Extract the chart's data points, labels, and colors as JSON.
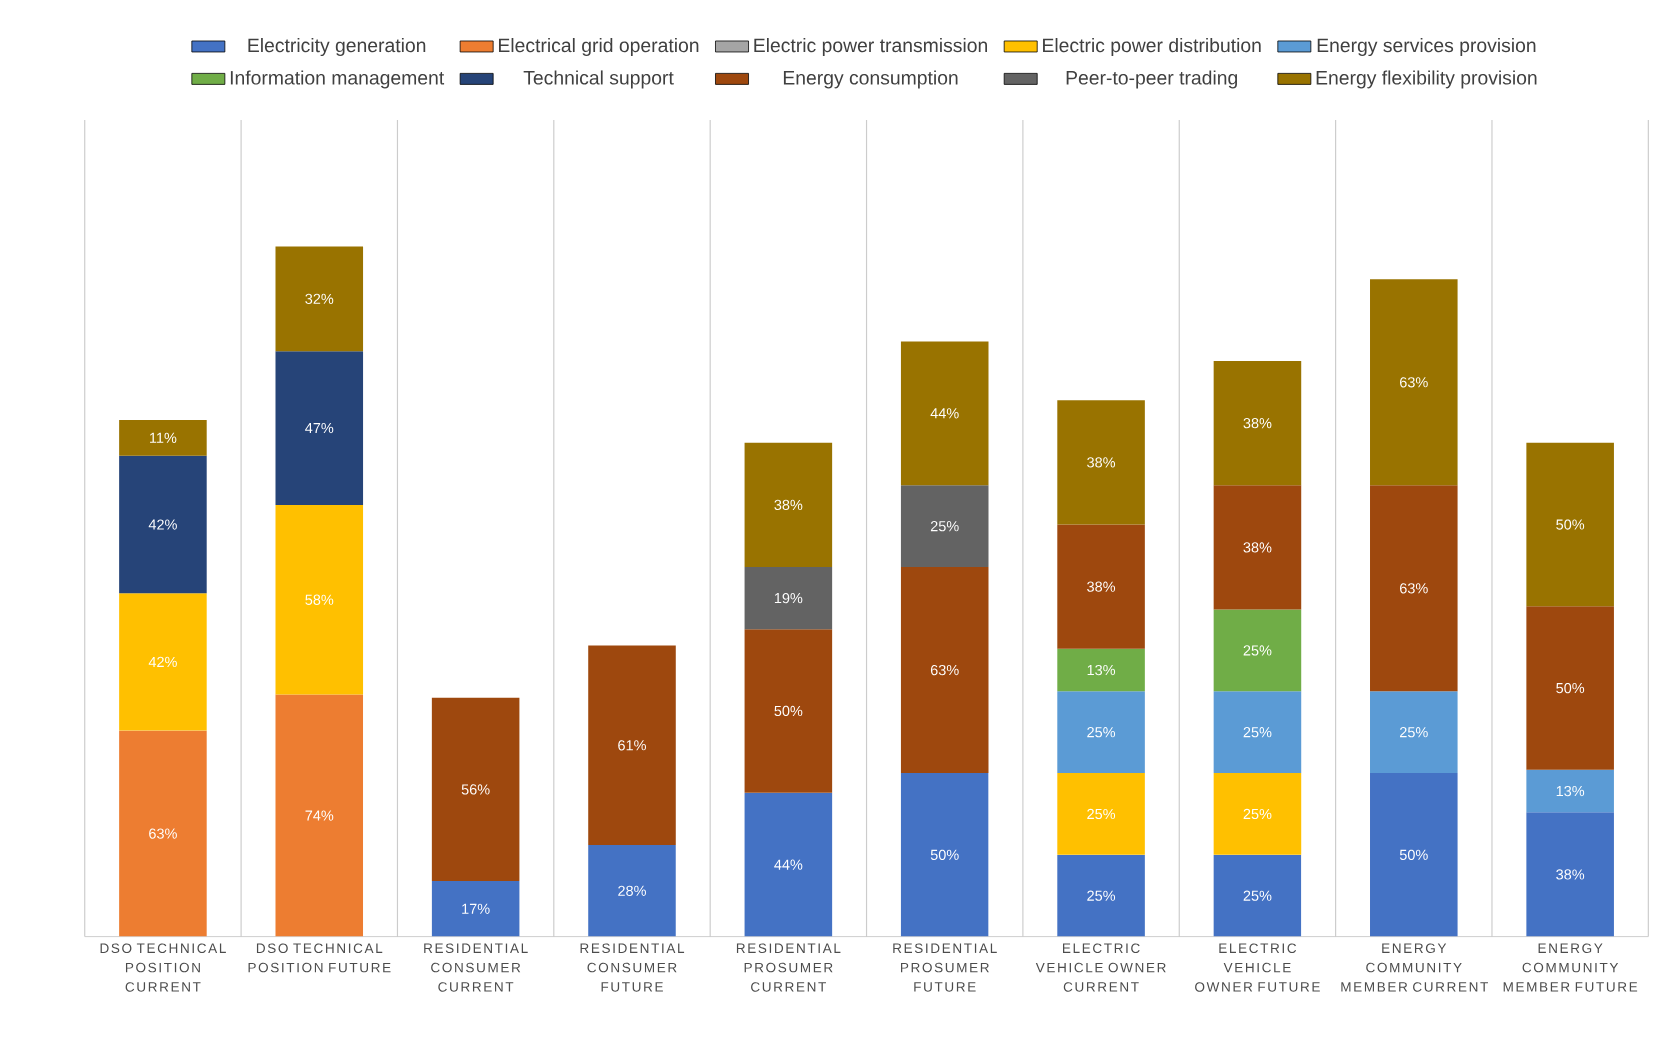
{
  "chart_data": {
    "type": "bar",
    "stacked": true,
    "legend": "top",
    "grid": "x",
    "categories": [
      "DSO TECHNICAL POSITION CURRENT",
      "DSO TECHNICAL POSITION FUTURE",
      "RESIDENTIAL CONSUMER CURRENT",
      "RESIDENTIAL CONSUMER FUTURE",
      "RESIDENTIAL PROSUMER CURRENT",
      "RESIDENTIAL PROSUMER FUTURE",
      "ELECTRIC VEHICLE OWNER CURRENT",
      "ELECTRIC VEHICLE OWNER FUTURE",
      "ENERGY COMMUNITY MEMBER CURRENT",
      "ENERGY COMMUNITY MEMBER FUTURE"
    ],
    "series": [
      {
        "name": "Electricity generation",
        "color": "#4472c4",
        "values": [
          null,
          null,
          17,
          28,
          44,
          50,
          25,
          25,
          50,
          38
        ],
        "value_labels": [
          null,
          null,
          "17%",
          "28%",
          "44%",
          "50%",
          "25%",
          "25%",
          "50%",
          "38%"
        ]
      },
      {
        "name": "Electrical grid operation",
        "color": "#ed7d31",
        "values": [
          63,
          74,
          null,
          null,
          null,
          null,
          null,
          null,
          null,
          null
        ],
        "value_labels": [
          "63%",
          "74%",
          null,
          null,
          null,
          null,
          null,
          null,
          null,
          null
        ]
      },
      {
        "name": "Electric power transmission",
        "color": "#a5a5a5",
        "values": [
          null,
          null,
          null,
          null,
          null,
          null,
          null,
          null,
          null,
          null
        ],
        "value_labels": [
          null,
          null,
          null,
          null,
          null,
          null,
          null,
          null,
          null,
          null
        ]
      },
      {
        "name": "Electric power distribution",
        "color": "#ffc000",
        "values": [
          42,
          58,
          null,
          null,
          null,
          null,
          25,
          25,
          null,
          null
        ],
        "value_labels": [
          "42%",
          "58%",
          null,
          null,
          null,
          null,
          "25%",
          "25%",
          null,
          null
        ]
      },
      {
        "name": "Energy services provision",
        "color": "#5b9bd5",
        "values": [
          null,
          null,
          null,
          null,
          null,
          null,
          25,
          25,
          25,
          13
        ],
        "value_labels": [
          null,
          null,
          null,
          null,
          null,
          null,
          "25%",
          "25%",
          "25%",
          "13%"
        ]
      },
      {
        "name": "Information management",
        "color": "#70ad47",
        "values": [
          null,
          null,
          null,
          null,
          null,
          null,
          13,
          25,
          null,
          null
        ],
        "value_labels": [
          null,
          null,
          null,
          null,
          null,
          null,
          "13%",
          "25%",
          null,
          null
        ]
      },
      {
        "name": "Technical support",
        "color": "#264478",
        "values": [
          42,
          47,
          null,
          null,
          null,
          null,
          null,
          null,
          null,
          null
        ],
        "value_labels": [
          "42%",
          "47%",
          null,
          null,
          null,
          null,
          null,
          null,
          null,
          null
        ]
      },
      {
        "name": "Energy consumption",
        "color": "#9e480e",
        "values": [
          null,
          null,
          56,
          61,
          50,
          63,
          38,
          38,
          63,
          50
        ],
        "value_labels": [
          null,
          null,
          "56%",
          "61%",
          "50%",
          "63%",
          "38%",
          "38%",
          "63%",
          "50%"
        ]
      },
      {
        "name": "Peer-to-peer trading",
        "color": "#636363",
        "values": [
          null,
          null,
          null,
          null,
          19,
          25,
          null,
          null,
          null,
          null
        ],
        "value_labels": [
          null,
          null,
          null,
          null,
          "19%",
          "25%",
          null,
          null,
          null,
          null
        ]
      },
      {
        "name": "Energy flexibility provision",
        "color": "#997300",
        "values": [
          11,
          32,
          null,
          null,
          38,
          44,
          38,
          38,
          63,
          50
        ],
        "value_labels": [
          "11%",
          "32%",
          null,
          null,
          "38%",
          "44%",
          "38%",
          "38%",
          "63%",
          "50%"
        ]
      }
    ]
  }
}
